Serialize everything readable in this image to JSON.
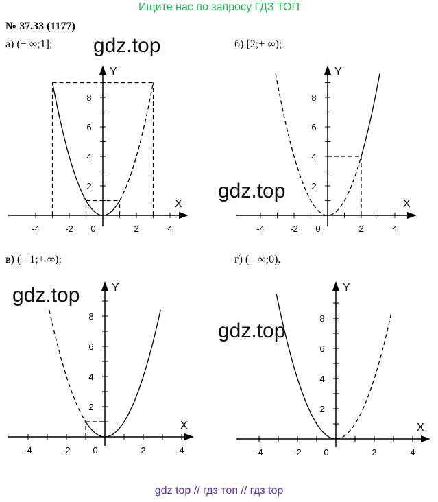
{
  "banner": {
    "text": "Ищите нас по запросу ГДЗ ТОП",
    "color": "#22b24c"
  },
  "problem": {
    "number": "№ 37.33 (1177)"
  },
  "watermark": "gdz.top",
  "footer": {
    "text": "gdz top  //  гдз топ  //  гдз top",
    "color": "#5b2d9c"
  },
  "chart_data": [
    {
      "type": "line",
      "label": "а) (− ∞;1];",
      "axes": {
        "x_name": "X",
        "y_name": "Y",
        "xticks": [
          "-4",
          "-2",
          "0",
          "2",
          "4"
        ],
        "yticks": [
          "2",
          "4",
          "6",
          "8"
        ],
        "xlim": [
          -4.5,
          4.5
        ],
        "ylim": [
          0,
          9.5
        ]
      },
      "function": "y = x^2",
      "solid_range": [
        -3,
        1
      ],
      "dashed_range": [
        1,
        3
      ],
      "guides": [
        {
          "from": [
            -3,
            0
          ],
          "to": [
            -3,
            9
          ]
        },
        {
          "from": [
            3,
            0
          ],
          "to": [
            3,
            9
          ]
        },
        {
          "from": [
            -3,
            9
          ],
          "to": [
            3,
            9
          ]
        },
        {
          "from": [
            -1,
            0
          ],
          "to": [
            -1,
            1
          ]
        },
        {
          "from": [
            1,
            0
          ],
          "to": [
            1,
            1
          ]
        },
        {
          "from": [
            -1,
            1
          ],
          "to": [
            1,
            1
          ]
        }
      ]
    },
    {
      "type": "line",
      "label": "б) [2;+ ∞);",
      "axes": {
        "x_name": "X",
        "y_name": "Y",
        "xticks": [
          "-4",
          "-2",
          "0",
          "2",
          "4"
        ],
        "yticks": [
          "2",
          "4",
          "6",
          "8"
        ],
        "xlim": [
          -4.5,
          4.5
        ],
        "ylim": [
          0,
          9.5
        ]
      },
      "function": "y = x^2",
      "solid_range": [
        2,
        3.1
      ],
      "dashed_range": [
        -3.1,
        2
      ],
      "guides": [
        {
          "from": [
            2,
            0
          ],
          "to": [
            2,
            4
          ]
        },
        {
          "from": [
            0,
            4
          ],
          "to": [
            2,
            4
          ]
        }
      ]
    },
    {
      "type": "line",
      "label": "в) (− 1;+ ∞);",
      "axes": {
        "x_name": "X",
        "y_name": "Y",
        "xticks": [
          "-4",
          "-2",
          "0",
          "2",
          "4"
        ],
        "yticks": [
          "2",
          "4",
          "6",
          "8"
        ],
        "xlim": [
          -4.5,
          4.5
        ],
        "ylim": [
          0,
          9.5
        ]
      },
      "function": "y = x^2",
      "solid_range": [
        -1,
        2.9
      ],
      "dashed_range": [
        -2.9,
        -1
      ],
      "guides": [
        {
          "from": [
            -1,
            0
          ],
          "to": [
            -1,
            1
          ]
        },
        {
          "from": [
            -1,
            1
          ],
          "to": [
            0,
            1
          ]
        }
      ]
    },
    {
      "type": "line",
      "label": "г) (− ∞;0).",
      "axes": {
        "x_name": "X",
        "y_name": "Y",
        "xticks": [
          "-4",
          "-2",
          "0",
          "2",
          "4"
        ],
        "yticks": [
          "2",
          "4",
          "6",
          "8"
        ],
        "xlim": [
          -4.5,
          4.5
        ],
        "ylim": [
          0,
          9.5
        ]
      },
      "function": "y = x^2",
      "solid_range": [
        -3.1,
        0
      ],
      "dashed_range": [
        0,
        2.9
      ],
      "guides": []
    }
  ]
}
